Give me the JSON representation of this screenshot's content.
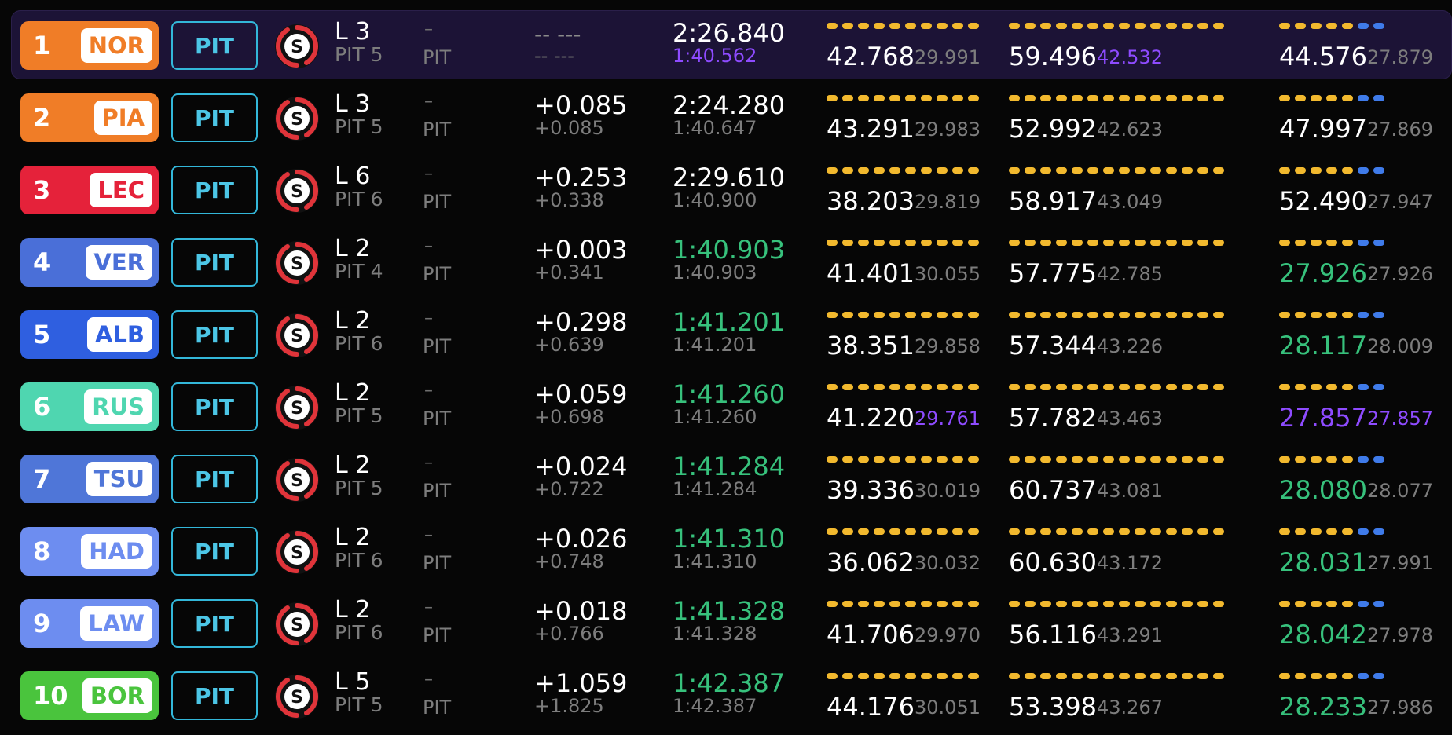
{
  "pit_label": "PIT",
  "tyre_letter": "S",
  "colors": {
    "tyre_soft": "#e0343a",
    "sector_segment": "#f2b92e",
    "sector_segment_alt": "#3f7bea",
    "personal_best": "#37c17c",
    "overall_best": "#8e4bff",
    "pit_outline": "#33b7d9"
  },
  "rows": [
    {
      "pos": "1",
      "code": "NOR",
      "team_color": "#f07d27",
      "lap": "L 3",
      "pit_count": "PIT 5",
      "status_dash": "–",
      "status": "PIT",
      "gap": "-- ---",
      "gap_sub": "-- ---",
      "laptime": "2:26.840",
      "laptime_sub": "1:40.562",
      "laptime_state": "normal",
      "laptime_sub_state": "purple",
      "s1": "42.768",
      "s1_best": "29.991",
      "s1_best_state": "normal",
      "s2": "59.496",
      "s2_best": "42.532",
      "s2_best_state": "purple",
      "s3": "44.576",
      "s3_state": "normal",
      "s3_best": "27.879",
      "s3_best_state": "normal",
      "highlight": true
    },
    {
      "pos": "2",
      "code": "PIA",
      "team_color": "#f07d27",
      "lap": "L 3",
      "pit_count": "PIT 5",
      "status_dash": "–",
      "status": "PIT",
      "gap": "+0.085",
      "gap_sub": "+0.085",
      "laptime": "2:24.280",
      "laptime_sub": "1:40.647",
      "laptime_state": "normal",
      "laptime_sub_state": "normal",
      "s1": "43.291",
      "s1_best": "29.983",
      "s1_best_state": "normal",
      "s2": "52.992",
      "s2_best": "42.623",
      "s2_best_state": "normal",
      "s3": "47.997",
      "s3_state": "normal",
      "s3_best": "27.869",
      "s3_best_state": "normal",
      "highlight": false
    },
    {
      "pos": "3",
      "code": "LEC",
      "team_color": "#e5223a",
      "lap": "L 6",
      "pit_count": "PIT 6",
      "status_dash": "–",
      "status": "PIT",
      "gap": "+0.253",
      "gap_sub": "+0.338",
      "laptime": "2:29.610",
      "laptime_sub": "1:40.900",
      "laptime_state": "normal",
      "laptime_sub_state": "normal",
      "s1": "38.203",
      "s1_best": "29.819",
      "s1_best_state": "normal",
      "s2": "58.917",
      "s2_best": "43.049",
      "s2_best_state": "normal",
      "s3": "52.490",
      "s3_state": "normal",
      "s3_best": "27.947",
      "s3_best_state": "normal",
      "highlight": false
    },
    {
      "pos": "4",
      "code": "VER",
      "team_color": "#4a6fd8",
      "lap": "L 2",
      "pit_count": "PIT 4",
      "status_dash": "–",
      "status": "PIT",
      "gap": "+0.003",
      "gap_sub": "+0.341",
      "laptime": "1:40.903",
      "laptime_sub": "1:40.903",
      "laptime_state": "green",
      "laptime_sub_state": "normal",
      "s1": "41.401",
      "s1_best": "30.055",
      "s1_best_state": "normal",
      "s2": "57.775",
      "s2_best": "42.785",
      "s2_best_state": "normal",
      "s3": "27.926",
      "s3_state": "green",
      "s3_best": "27.926",
      "s3_best_state": "normal",
      "highlight": false
    },
    {
      "pos": "5",
      "code": "ALB",
      "team_color": "#2f5fe0",
      "lap": "L 2",
      "pit_count": "PIT 6",
      "status_dash": "–",
      "status": "PIT",
      "gap": "+0.298",
      "gap_sub": "+0.639",
      "laptime": "1:41.201",
      "laptime_sub": "1:41.201",
      "laptime_state": "green",
      "laptime_sub_state": "normal",
      "s1": "38.351",
      "s1_best": "29.858",
      "s1_best_state": "normal",
      "s2": "57.344",
      "s2_best": "43.226",
      "s2_best_state": "normal",
      "s3": "28.117",
      "s3_state": "green",
      "s3_best": "28.009",
      "s3_best_state": "normal",
      "highlight": false
    },
    {
      "pos": "6",
      "code": "RUS",
      "team_color": "#4fd6b0",
      "lap": "L 2",
      "pit_count": "PIT 5",
      "status_dash": "–",
      "status": "PIT",
      "gap": "+0.059",
      "gap_sub": "+0.698",
      "laptime": "1:41.260",
      "laptime_sub": "1:41.260",
      "laptime_state": "green",
      "laptime_sub_state": "normal",
      "s1": "41.220",
      "s1_best": "29.761",
      "s1_best_state": "purple",
      "s2": "57.782",
      "s2_best": "43.463",
      "s2_best_state": "normal",
      "s3": "27.857",
      "s3_state": "purple",
      "s3_best": "27.857",
      "s3_best_state": "purple",
      "highlight": false
    },
    {
      "pos": "7",
      "code": "TSU",
      "team_color": "#4f76d8",
      "lap": "L 2",
      "pit_count": "PIT 5",
      "status_dash": "–",
      "status": "PIT",
      "gap": "+0.024",
      "gap_sub": "+0.722",
      "laptime": "1:41.284",
      "laptime_sub": "1:41.284",
      "laptime_state": "green",
      "laptime_sub_state": "normal",
      "s1": "39.336",
      "s1_best": "30.019",
      "s1_best_state": "normal",
      "s2": "60.737",
      "s2_best": "43.081",
      "s2_best_state": "normal",
      "s3": "28.080",
      "s3_state": "green",
      "s3_best": "28.077",
      "s3_best_state": "normal",
      "highlight": false
    },
    {
      "pos": "8",
      "code": "HAD",
      "team_color": "#6d8df0",
      "lap": "L 2",
      "pit_count": "PIT 6",
      "status_dash": "–",
      "status": "PIT",
      "gap": "+0.026",
      "gap_sub": "+0.748",
      "laptime": "1:41.310",
      "laptime_sub": "1:41.310",
      "laptime_state": "green",
      "laptime_sub_state": "normal",
      "s1": "36.062",
      "s1_best": "30.032",
      "s1_best_state": "normal",
      "s2": "60.630",
      "s2_best": "43.172",
      "s2_best_state": "normal",
      "s3": "28.031",
      "s3_state": "green",
      "s3_best": "27.991",
      "s3_best_state": "normal",
      "highlight": false
    },
    {
      "pos": "9",
      "code": "LAW",
      "team_color": "#6d8df0",
      "lap": "L 2",
      "pit_count": "PIT 6",
      "status_dash": "–",
      "status": "PIT",
      "gap": "+0.018",
      "gap_sub": "+0.766",
      "laptime": "1:41.328",
      "laptime_sub": "1:41.328",
      "laptime_state": "green",
      "laptime_sub_state": "normal",
      "s1": "41.706",
      "s1_best": "29.970",
      "s1_best_state": "normal",
      "s2": "56.116",
      "s2_best": "43.291",
      "s2_best_state": "normal",
      "s3": "28.042",
      "s3_state": "green",
      "s3_best": "27.978",
      "s3_best_state": "normal",
      "highlight": false
    },
    {
      "pos": "10",
      "code": "BOR",
      "team_color": "#4ac43d",
      "lap": "L 5",
      "pit_count": "PIT 5",
      "status_dash": "–",
      "status": "PIT",
      "gap": "+1.059",
      "gap_sub": "+1.825",
      "laptime": "1:42.387",
      "laptime_sub": "1:42.387",
      "laptime_state": "green",
      "laptime_sub_state": "normal",
      "s1": "44.176",
      "s1_best": "30.051",
      "s1_best_state": "normal",
      "s2": "53.398",
      "s2_best": "43.267",
      "s2_best_state": "normal",
      "s3": "28.233",
      "s3_state": "green",
      "s3_best": "27.986",
      "s3_best_state": "normal",
      "highlight": false
    }
  ]
}
